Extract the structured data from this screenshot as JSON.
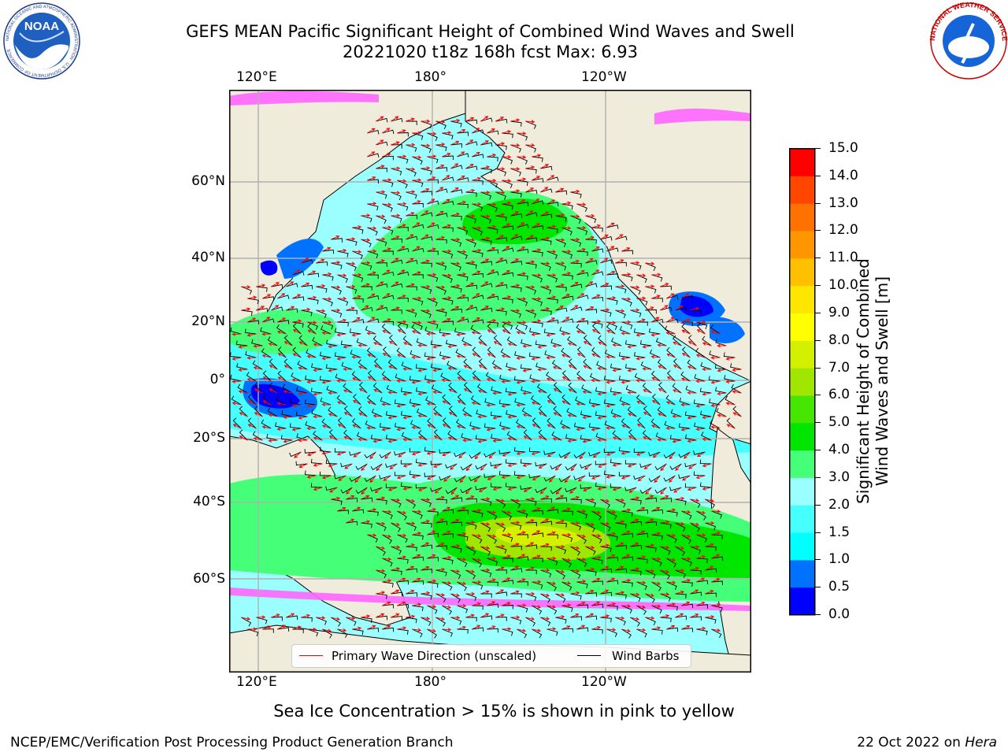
{
  "header": {
    "title_line1": "GEFS MEAN Pacific Significant Height of Combined Wind Waves and Swell",
    "title_line2": "20221020 t18z 168h fcst   Max: 6.93"
  },
  "logos": {
    "left": {
      "text": "NOAA",
      "ring_text": "NATIONAL OCEANIC AND ATMOSPHERIC ADMINISTRATION · U.S. DEPARTMENT OF COMMERCE"
    },
    "right": {
      "ring_text": "NATIONAL WEATHER SERVICE"
    }
  },
  "map": {
    "lon_labels": [
      "120°E",
      "180°",
      "120°W"
    ],
    "lat_labels": [
      "60°N",
      "40°N",
      "20°N",
      "0°",
      "20°S",
      "40°S",
      "60°S"
    ],
    "legend": {
      "wave_label": "Primary Wave Direction (unscaled)",
      "barb_label": "Wind Barbs",
      "wave_color": "#ff0000",
      "barb_color": "#000000"
    },
    "land_color": "#efecdc"
  },
  "colorbar": {
    "label_line1": "Significant Height of Combined",
    "label_line2": "Wind Waves and Swell [m]",
    "ticks": [
      "15.0",
      "14.0",
      "13.0",
      "12.0",
      "11.0",
      "10.0",
      "9.0",
      "8.0",
      "7.0",
      "6.0",
      "5.0",
      "4.0",
      "3.0",
      "2.0",
      "1.5",
      "1.0",
      "0.5",
      "0.0"
    ],
    "colors": [
      "#0000ff",
      "#0072ff",
      "#00ffff",
      "#46ffff",
      "#9bffff",
      "#46ff79",
      "#00e600",
      "#46e600",
      "#a0e600",
      "#d2f000",
      "#ffff00",
      "#ffe600",
      "#ffc000",
      "#ff9600",
      "#ff7200",
      "#ff4600",
      "#ff0000"
    ]
  },
  "note": "Sea Ice Concentration > 15% is shown in pink to yellow",
  "footer": {
    "left": "NCEP/EMC/Verification Post Processing Product Generation Branch",
    "date": "22 Oct 2022 on ",
    "host": "Hera"
  }
}
